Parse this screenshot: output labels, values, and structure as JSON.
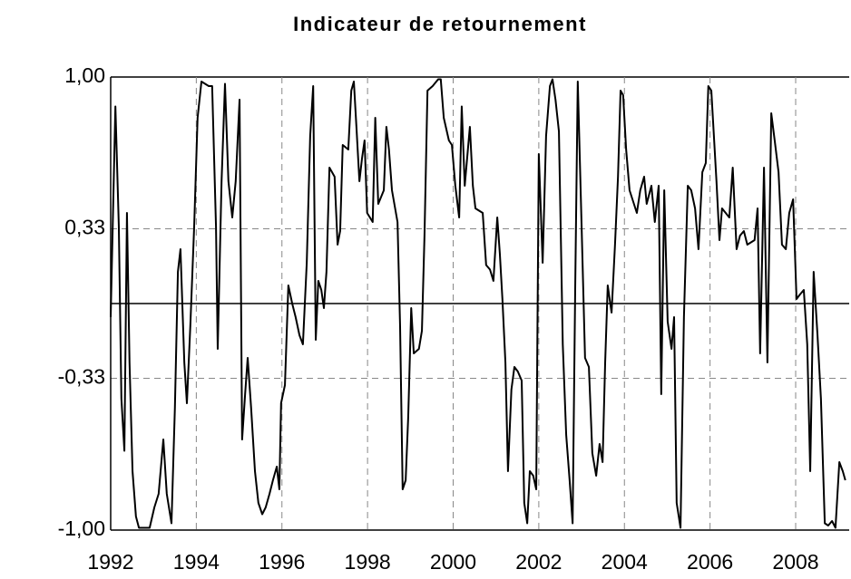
{
  "chart_data": {
    "type": "line",
    "title": "Indicateur de retournement",
    "xlim": [
      1992,
      2009.25
    ],
    "xticks": [
      1992,
      1994,
      1996,
      1998,
      2000,
      2002,
      2004,
      2006,
      2008
    ],
    "ylim": [
      -1,
      1
    ],
    "yticks": [
      {
        "value": -1,
        "label": "-1,00"
      },
      {
        "value": -0.33,
        "label": "-0,33"
      },
      {
        "value": 0.33,
        "label": "0,33"
      },
      {
        "value": 1,
        "label": "1,00"
      }
    ],
    "grid": true,
    "zero_line": true,
    "series": [
      {
        "color": "#000000",
        "x": [
          1992.0,
          1992.11,
          1992.19,
          1992.25,
          1992.32,
          1992.38,
          1992.44,
          1992.51,
          1992.59,
          1992.66,
          1992.91,
          1993.02,
          1993.12,
          1993.23,
          1993.31,
          1993.42,
          1993.5,
          1993.57,
          1993.63,
          1993.72,
          1993.78,
          1993.86,
          1993.95,
          1994.03,
          1994.12,
          1994.29,
          1994.37,
          1994.46,
          1994.5,
          1994.59,
          1994.67,
          1994.75,
          1994.84,
          1994.92,
          1995.01,
          1995.07,
          1995.14,
          1995.2,
          1995.28,
          1995.37,
          1995.45,
          1995.54,
          1995.62,
          1995.71,
          1995.79,
          1995.88,
          1995.94,
          1995.98,
          1996.07,
          1996.15,
          1996.24,
          1996.32,
          1996.41,
          1996.49,
          1996.58,
          1996.66,
          1996.73,
          1996.79,
          1996.85,
          1996.92,
          1996.98,
          1997.04,
          1997.11,
          1997.23,
          1997.3,
          1997.36,
          1997.42,
          1997.55,
          1997.62,
          1997.68,
          1997.74,
          1997.81,
          1997.87,
          1997.93,
          1997.99,
          1998.12,
          1998.18,
          1998.25,
          1998.38,
          1998.44,
          1998.5,
          1998.57,
          1998.7,
          1998.76,
          1998.82,
          1998.89,
          1998.95,
          1999.02,
          1999.08,
          1999.2,
          1999.27,
          1999.33,
          1999.4,
          1999.52,
          1999.65,
          1999.71,
          1999.78,
          1999.9,
          1999.97,
          2000.05,
          2000.14,
          2000.2,
          2000.27,
          2000.39,
          2000.46,
          2000.52,
          2000.69,
          2000.77,
          2000.86,
          2000.94,
          2001.03,
          2001.09,
          2001.15,
          2001.22,
          2001.28,
          2001.36,
          2001.43,
          2001.51,
          2001.6,
          2001.66,
          2001.73,
          2001.79,
          2001.87,
          2001.94,
          2002.0,
          2002.09,
          2002.17,
          2002.26,
          2002.32,
          2002.39,
          2002.47,
          2002.56,
          2002.64,
          2002.72,
          2002.79,
          2002.85,
          2002.91,
          2003.0,
          2003.08,
          2003.17,
          2003.25,
          2003.34,
          2003.42,
          2003.49,
          2003.55,
          2003.61,
          2003.7,
          2003.78,
          2003.85,
          2003.91,
          2003.97,
          2004.04,
          2004.12,
          2004.29,
          2004.37,
          2004.46,
          2004.52,
          2004.63,
          2004.71,
          2004.8,
          2004.86,
          2004.93,
          2005.01,
          2005.1,
          2005.16,
          2005.22,
          2005.31,
          2005.39,
          2005.48,
          2005.56,
          2005.65,
          2005.73,
          2005.82,
          2005.9,
          2005.96,
          2006.03,
          2006.09,
          2006.15,
          2006.22,
          2006.28,
          2006.45,
          2006.53,
          2006.62,
          2006.7,
          2006.79,
          2006.87,
          2007.04,
          2007.11,
          2007.17,
          2007.26,
          2007.34,
          2007.43,
          2007.51,
          2007.6,
          2007.68,
          2007.77,
          2007.85,
          2007.94,
          2008.02,
          2008.1,
          2008.19,
          2008.27,
          2008.34,
          2008.42,
          2008.51,
          2008.59,
          2008.68,
          2008.76,
          2008.85,
          2008.93,
          2009.02,
          2009.1,
          2009.16
        ],
        "values": [
          -0.06,
          0.87,
          0.34,
          -0.42,
          -0.65,
          0.4,
          -0.26,
          -0.74,
          -0.94,
          -0.99,
          -0.99,
          -0.9,
          -0.84,
          -0.6,
          -0.84,
          -0.97,
          -0.46,
          0.14,
          0.24,
          -0.26,
          -0.44,
          -0.1,
          0.34,
          0.82,
          0.98,
          0.96,
          0.96,
          0.34,
          -0.2,
          0.54,
          0.97,
          0.54,
          0.38,
          0.54,
          0.9,
          -0.6,
          -0.4,
          -0.24,
          -0.46,
          -0.74,
          -0.88,
          -0.93,
          -0.9,
          -0.84,
          -0.78,
          -0.72,
          -0.82,
          -0.44,
          -0.36,
          0.08,
          0.0,
          -0.06,
          -0.14,
          -0.18,
          0.18,
          0.74,
          0.96,
          -0.16,
          0.1,
          0.06,
          -0.02,
          0.14,
          0.6,
          0.56,
          0.26,
          0.32,
          0.7,
          0.68,
          0.94,
          0.98,
          0.78,
          0.54,
          0.64,
          0.72,
          0.4,
          0.36,
          0.82,
          0.44,
          0.5,
          0.78,
          0.68,
          0.5,
          0.36,
          -0.1,
          -0.82,
          -0.78,
          -0.5,
          -0.02,
          -0.22,
          -0.2,
          -0.12,
          0.3,
          0.94,
          0.96,
          0.99,
          0.99,
          0.82,
          0.72,
          0.7,
          0.52,
          0.38,
          0.87,
          0.52,
          0.78,
          0.52,
          0.42,
          0.4,
          0.17,
          0.15,
          0.1,
          0.38,
          0.22,
          0.02,
          -0.26,
          -0.74,
          -0.38,
          -0.28,
          -0.3,
          -0.34,
          -0.88,
          -0.97,
          -0.74,
          -0.76,
          -0.82,
          0.66,
          0.18,
          0.74,
          0.96,
          0.99,
          0.9,
          0.76,
          -0.18,
          -0.58,
          -0.78,
          -0.97,
          0.06,
          0.98,
          0.34,
          -0.24,
          -0.28,
          -0.66,
          -0.76,
          -0.62,
          -0.7,
          -0.26,
          0.08,
          -0.04,
          0.26,
          0.56,
          0.94,
          0.92,
          0.68,
          0.5,
          0.4,
          0.5,
          0.56,
          0.44,
          0.52,
          0.36,
          0.52,
          -0.4,
          0.5,
          -0.08,
          -0.2,
          -0.06,
          -0.88,
          -0.99,
          -0.06,
          0.52,
          0.5,
          0.42,
          0.24,
          0.58,
          0.62,
          0.96,
          0.94,
          0.74,
          0.54,
          0.28,
          0.42,
          0.38,
          0.6,
          0.24,
          0.3,
          0.32,
          0.26,
          0.28,
          0.42,
          -0.22,
          0.6,
          -0.26,
          0.84,
          0.72,
          0.58,
          0.26,
          0.24,
          0.4,
          0.46,
          0.02,
          0.04,
          0.06,
          -0.18,
          -0.74,
          0.14,
          -0.14,
          -0.42,
          -0.97,
          -0.98,
          -0.96,
          -0.99,
          -0.7,
          -0.74,
          -0.78
        ]
      }
    ]
  }
}
